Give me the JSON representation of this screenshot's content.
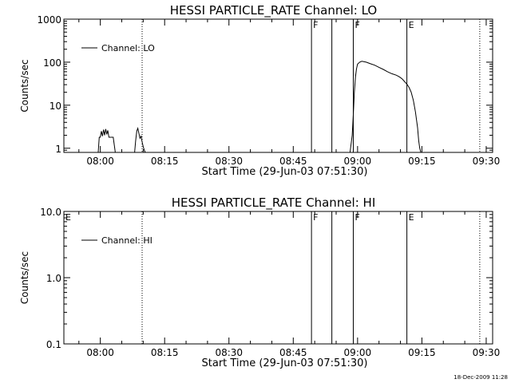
{
  "chart_data": [
    {
      "type": "line",
      "title": "HESSI PARTICLE_RATE Channel: LO",
      "xlabel": "Start Time (29-Jun-03 07:51:30)",
      "ylabel": "Counts/sec",
      "yscale": "log",
      "ylim": [
        0.8,
        1000
      ],
      "xlim": [
        "07:51:30",
        "09:31:30"
      ],
      "xticks": [
        "08:00",
        "08:15",
        "08:30",
        "08:45",
        "09:00",
        "09:15",
        "09:30"
      ],
      "yticks": [
        "1",
        "10",
        "100",
        "1000"
      ],
      "legend": "top-left",
      "series": [
        {
          "name": "Channel: LO",
          "x": [
            "07:51:30",
            "07:59:30",
            "07:59:45",
            "08:00:00",
            "08:00:15",
            "08:00:30",
            "08:00:45",
            "08:01:00",
            "08:01:15",
            "08:01:30",
            "08:01:45",
            "08:02:00",
            "08:02:30",
            "08:03:00",
            "08:03:15",
            "08:03:30",
            "08:08:00",
            "08:08:15",
            "08:08:30",
            "08:08:45",
            "08:09:00",
            "08:09:15",
            "08:09:30",
            "08:09:45",
            "08:10:00",
            "08:10:15",
            "08:10:30",
            "08:58:15",
            "08:58:45",
            "08:59:00",
            "08:59:15",
            "08:59:30",
            "08:59:45",
            "09:00:00",
            "09:00:30",
            "09:01:00",
            "09:02:00",
            "09:03:00",
            "09:04:00",
            "09:05:00",
            "09:06:00",
            "09:07:00",
            "09:08:00",
            "09:09:00",
            "09:09:30",
            "09:10:00",
            "09:10:30",
            "09:11:00",
            "09:11:30",
            "09:12:00",
            "09:12:30",
            "09:13:00",
            "09:13:30",
            "09:14:00",
            "09:14:15",
            "09:14:30",
            "09:14:45"
          ],
          "y": [
            0.8,
            0.8,
            1.8,
            1.8,
            2.5,
            1.9,
            2.7,
            2.0,
            2.8,
            2.1,
            2.6,
            1.8,
            1.8,
            1.8,
            1.2,
            0.8,
            0.8,
            1.5,
            2.5,
            2.9,
            2.2,
            1.7,
            1.9,
            1.4,
            1.1,
            0.9,
            0.8,
            0.8,
            2.0,
            6.0,
            20,
            45,
            70,
            90,
            100,
            105,
            100,
            92,
            85,
            76,
            68,
            60,
            54,
            50,
            47,
            44,
            40,
            35,
            31,
            26,
            20,
            13,
            7,
            3,
            1.5,
            1.0,
            0.8
          ]
        }
      ],
      "markers": [
        {
          "time": "08:49:15",
          "label": "F",
          "style": "solid"
        },
        {
          "time": "08:54:00",
          "label": "",
          "style": "solid"
        },
        {
          "time": "08:59:00",
          "label": "F",
          "style": "solid"
        },
        {
          "time": "09:11:30",
          "label": "E",
          "style": "solid"
        },
        {
          "time": "08:09:45",
          "label": "",
          "style": "dotted"
        },
        {
          "time": "09:28:30",
          "label": "",
          "style": "dotted"
        }
      ]
    },
    {
      "type": "line",
      "title": "HESSI PARTICLE_RATE Channel: HI",
      "xlabel": "Start Time (29-Jun-03 07:51:30)",
      "ylabel": "Counts/sec",
      "yscale": "log",
      "ylim": [
        0.1,
        10
      ],
      "xlim": [
        "07:51:30",
        "09:31:30"
      ],
      "xticks": [
        "08:00",
        "08:15",
        "08:30",
        "08:45",
        "09:00",
        "09:15",
        "09:30"
      ],
      "yticks": [
        "0.1",
        "1.0",
        "10.0"
      ],
      "legend": "top-left",
      "series": [
        {
          "name": "Channel: HI",
          "x": [],
          "y": []
        }
      ],
      "markers": [
        {
          "time": "07:51:30",
          "label": "E",
          "style": "none"
        },
        {
          "time": "08:49:15",
          "label": "F",
          "style": "solid"
        },
        {
          "time": "08:54:00",
          "label": "",
          "style": "solid"
        },
        {
          "time": "08:59:00",
          "label": "F",
          "style": "solid"
        },
        {
          "time": "09:11:30",
          "label": "E",
          "style": "solid"
        },
        {
          "time": "08:09:45",
          "label": "",
          "style": "dotted"
        },
        {
          "time": "09:28:30",
          "label": "",
          "style": "dotted"
        }
      ]
    }
  ],
  "footer_date": "18-Dec-2009 11:28"
}
